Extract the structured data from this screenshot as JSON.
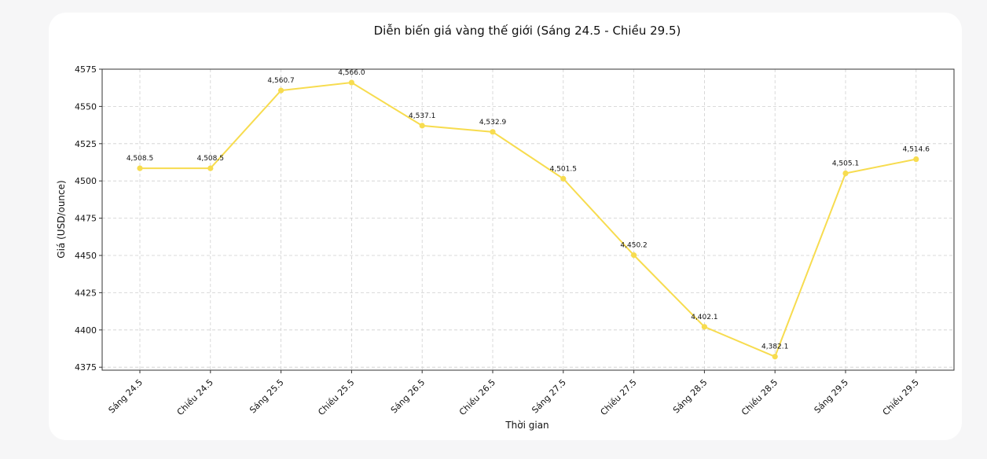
{
  "chart_data": {
    "type": "line",
    "title": "Diễn biến giá vàng thế giới (Sáng 24.5 - Chiều 29.5)",
    "xlabel": "Thời gian",
    "ylabel": "Giá (USD/ounce)",
    "categories": [
      "Sáng 24.5",
      "Chiều 24.5",
      "Sáng 25.5",
      "Chiều 25.5",
      "Sáng 26.5",
      "Chiều 26.5",
      "Sáng 27.5",
      "Chiều 27.5",
      "Sáng 28.5",
      "Chiều 28.5",
      "Sáng 29.5",
      "Chiều 29.5"
    ],
    "values": [
      4508.5,
      4508.5,
      4560.7,
      4566.0,
      4537.1,
      4532.9,
      4501.5,
      4450.2,
      4402.1,
      4382.1,
      4505.1,
      4514.6
    ],
    "data_labels": [
      "4,508.5",
      "4,508.5",
      "4,560.7",
      "4,566.0",
      "4,537.1",
      "4,532.9",
      "4,501.5",
      "4,450.2",
      "4,402.1",
      "4,382.1",
      "4,505.1",
      "4,514.6"
    ],
    "ylim": [
      4373,
      4575
    ],
    "yticks": [
      4375,
      4400,
      4425,
      4450,
      4475,
      4500,
      4525,
      4550,
      4575
    ],
    "grid": true,
    "legend": "none",
    "line_color": "#f7dc4f"
  }
}
